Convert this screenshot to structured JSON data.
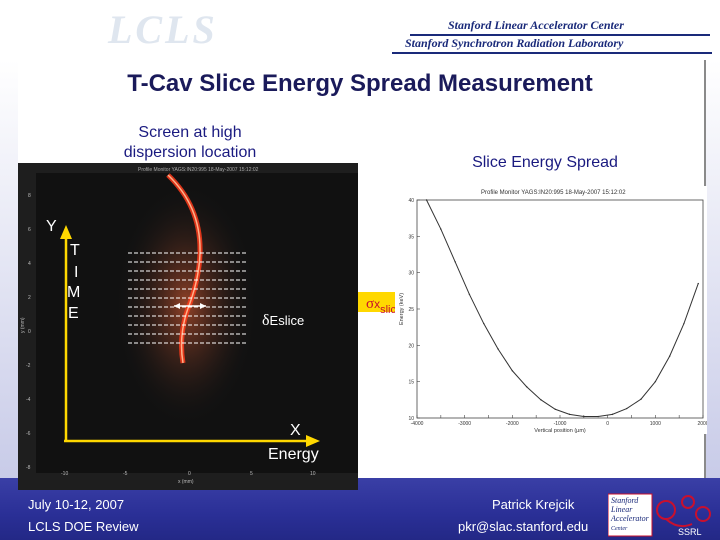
{
  "header": {
    "logo_text": "LCLS",
    "lab_line_1": "Stanford Linear Accelerator Center",
    "lab_line_2": "Stanford Synchrotron Radiation Laboratory"
  },
  "slide": {
    "title": "T-Cav Slice Energy Spread Measurement",
    "screen_label": "Screen at high dispersion location",
    "spread_label": "Slice Energy Spread",
    "y_axis_label": "Y",
    "time_label": [
      "T",
      "I",
      "M",
      "E"
    ],
    "x_axis_label": "X",
    "energy_label": "Energy",
    "delta_e_symbol": "δ",
    "delta_e_label": "E",
    "delta_e_subscript": "slice",
    "sigma_symbol": "σ",
    "sigma_label": "x",
    "sigma_subscript": "slice",
    "image_caption": "Profile Monitor YAGS:IN20:995 18-May-2007 15:12:02",
    "image_x_ticks": [
      "-10",
      "-5",
      "0",
      "5",
      "10"
    ],
    "image_y_ticks": [
      "8",
      "6",
      "4",
      "2",
      "0",
      "-2",
      "-4",
      "-6",
      "-8"
    ],
    "image_x_label": "x (mm)",
    "image_y_label": "y (mm)"
  },
  "chart_data": {
    "type": "line",
    "title": "Profile Monitor YAGS:IN20:995 18-May-2007 15:12:02",
    "xlabel": "Vertical position (µm)",
    "ylabel": "Energy (keV)",
    "xlim": [
      -4000,
      2000
    ],
    "ylim": [
      10,
      40
    ],
    "x_ticks": [
      "-4000",
      "-3500",
      "-3000",
      "-2500",
      "-2000",
      "-1500",
      "-1000",
      "-500",
      "0",
      "500",
      "1000",
      "1500",
      "2000"
    ],
    "y_ticks": [
      "10",
      "15",
      "20",
      "25",
      "30",
      "35",
      "40"
    ],
    "series": [
      {
        "name": "slice energy spread",
        "x": [
          -3800,
          -3500,
          -3200,
          -2900,
          -2600,
          -2300,
          -2000,
          -1700,
          -1400,
          -1100,
          -800,
          -500,
          -200,
          100,
          400,
          700,
          1000,
          1300,
          1600,
          1900
        ],
        "y": [
          40,
          36,
          31.5,
          27,
          23,
          19.5,
          16.5,
          14.3,
          12.5,
          11.2,
          10.5,
          10.2,
          10.2,
          10.5,
          11.3,
          12.6,
          15,
          18.5,
          23,
          28.5
        ]
      }
    ]
  },
  "footer": {
    "date": "July 10-12, 2007",
    "event": "LCLS DOE Review",
    "author": "Patrick Krejcik",
    "email": "pkr@slac.stanford.edu",
    "logo_text_1": "Stanford",
    "logo_text_2": "Linear",
    "logo_text_3": "Accelerator",
    "logo_text_4": "Center",
    "logo_text_5": "SSRL"
  },
  "colors": {
    "title": "#1a1a5a",
    "label": "#1a1a80",
    "footer_bg": "#2a2f96",
    "arrow": "#ffd800",
    "image_bg": "#1a1a1a",
    "beam": "#ff3b1a"
  }
}
